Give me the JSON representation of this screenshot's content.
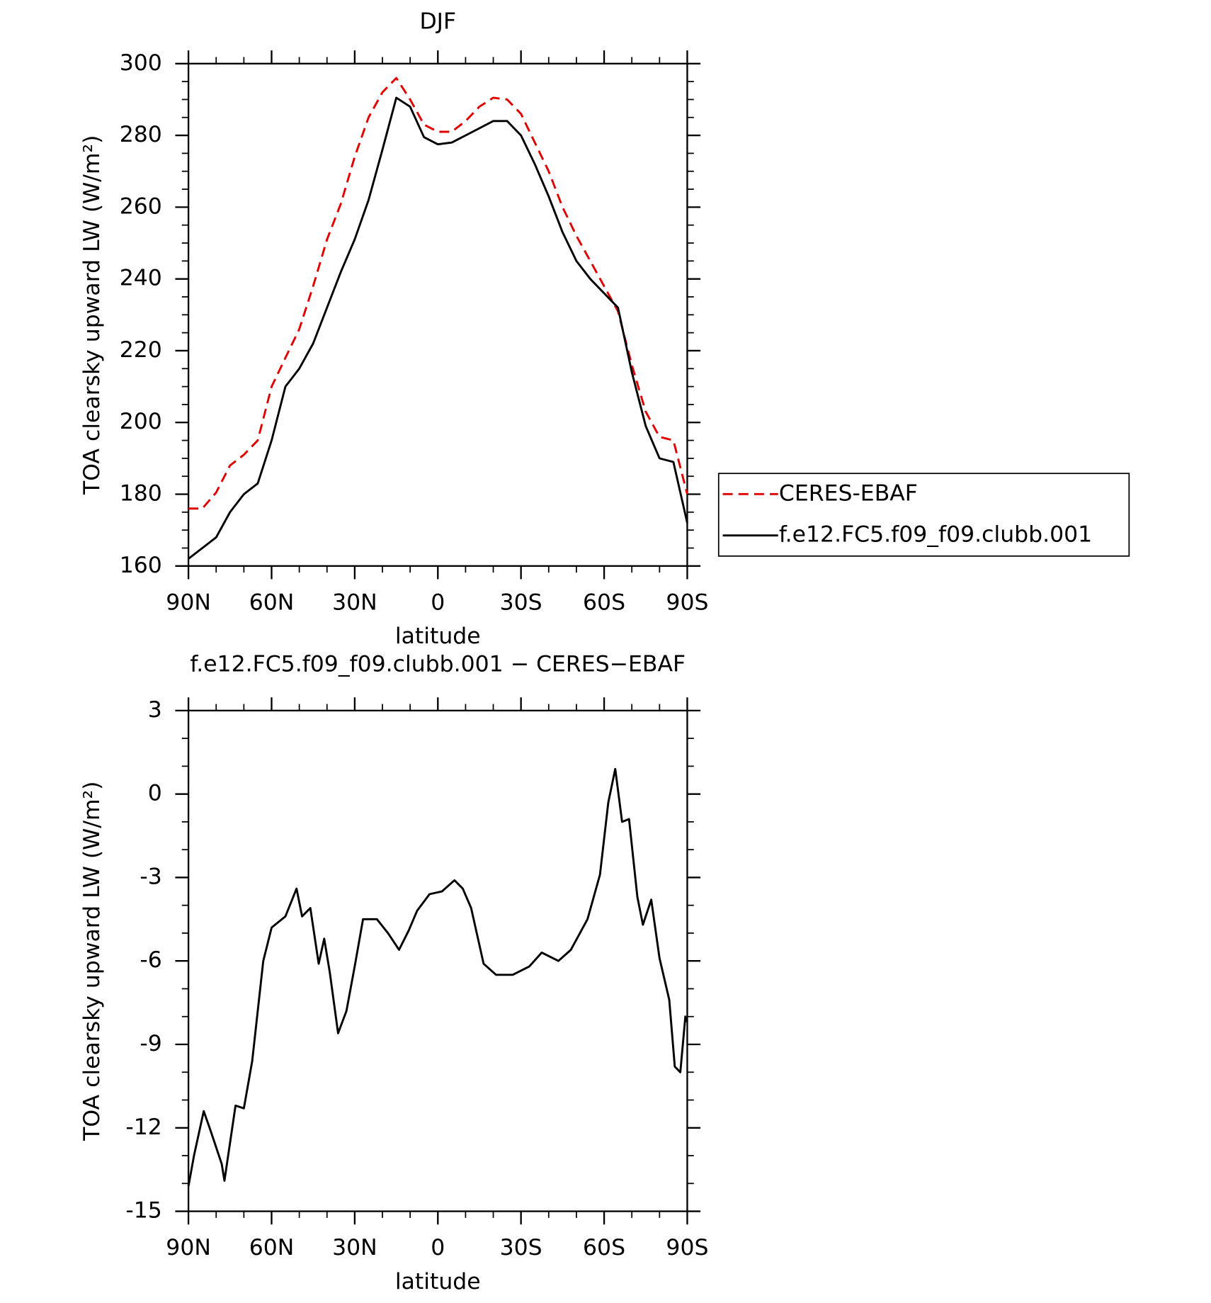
{
  "chart_data": [
    {
      "type": "line",
      "title": "DJF",
      "x_label": "latitude",
      "y_label": "TOA clearsky upward LW (W/m²)",
      "xlim": [
        90,
        -90
      ],
      "xticks": [
        {
          "value": 90,
          "label": "90N"
        },
        {
          "value": 60,
          "label": "60N"
        },
        {
          "value": 30,
          "label": "30N"
        },
        0,
        {
          "value": -30,
          "label": "30S"
        },
        {
          "value": -60,
          "label": "60S"
        },
        {
          "value": -90,
          "label": "90S"
        }
      ],
      "ylim": [
        160,
        300
      ],
      "yticks": [
        160,
        180,
        200,
        220,
        240,
        260,
        280,
        300
      ],
      "legend": "right",
      "x": [
        90,
        85,
        80,
        75,
        70,
        65,
        60,
        55,
        50,
        45,
        40,
        35,
        30,
        25,
        20,
        15,
        10,
        5,
        0,
        -5,
        -10,
        -15,
        -20,
        -25,
        -30,
        -35,
        -40,
        -45,
        -50,
        -55,
        -60,
        -65,
        -70,
        -75,
        -80,
        -85,
        -90
      ],
      "series": [
        {
          "name": "CERES-EBAF",
          "color": "#e00000",
          "dash": true,
          "values": [
            176,
            176,
            180.5,
            188,
            191,
            195,
            210,
            218,
            226,
            238,
            251,
            261,
            274,
            285,
            292,
            296,
            290,
            283,
            281,
            281,
            284,
            288,
            290.5,
            290,
            286,
            278,
            270,
            260,
            252,
            245,
            238,
            231,
            216,
            203,
            196,
            195,
            180
          ]
        },
        {
          "name": "f.e12.FC5.f09_f09.clubb.001",
          "color": "#000000",
          "dash": false,
          "values": [
            162,
            165,
            168,
            175,
            180,
            183,
            195,
            210,
            215,
            222,
            232,
            242,
            251,
            262,
            276,
            290.5,
            288,
            279.5,
            277.5,
            278,
            280,
            282,
            284,
            284,
            280,
            272,
            263,
            253,
            245,
            240,
            236,
            232,
            214,
            199,
            190,
            189,
            172
          ]
        }
      ]
    },
    {
      "type": "line",
      "title": "f.e12.FC5.f09_f09.clubb.001 − CERES−EBAF",
      "x_label": "latitude",
      "y_label": "TOA clearsky upward LW (W/m²)",
      "xlim": [
        90,
        -90
      ],
      "xticks": [
        {
          "value": 90,
          "label": "90N"
        },
        {
          "value": 60,
          "label": "60N"
        },
        {
          "value": 30,
          "label": "30N"
        },
        0,
        {
          "value": -30,
          "label": "30S"
        },
        {
          "value": -60,
          "label": "60S"
        },
        {
          "value": -90,
          "label": "90S"
        }
      ],
      "ylim": [
        -15,
        3
      ],
      "yticks": [
        -15,
        -12,
        -9,
        -6,
        -3,
        0,
        3
      ],
      "x": [
        90,
        88,
        84.5,
        82,
        78,
        77,
        73,
        70,
        67,
        63,
        60,
        55,
        51,
        49,
        46,
        43,
        41,
        39,
        36,
        33,
        30,
        27,
        22,
        18,
        14,
        10.5,
        7.5,
        3,
        -1.5,
        -6,
        -9,
        -12,
        -16.5,
        -21,
        -27,
        -33,
        -37.5,
        -43.5,
        -48,
        -54,
        -58.5,
        -61.5,
        -64,
        -66.5,
        -69,
        -72,
        -74,
        -77,
        -80,
        -83.5,
        -85.5,
        -87.5,
        -89.3,
        -90
      ],
      "series": [
        {
          "color": "#000000",
          "dash": false,
          "values": [
            -14.1,
            -13.0,
            -11.4,
            -12.1,
            -13.3,
            -13.9,
            -11.2,
            -11.3,
            -9.6,
            -6.0,
            -4.8,
            -4.4,
            -3.4,
            -4.4,
            -4.1,
            -6.1,
            -5.2,
            -6.4,
            -8.6,
            -7.8,
            -6.2,
            -4.5,
            -4.5,
            -5.0,
            -5.6,
            -4.9,
            -4.2,
            -3.6,
            -3.5,
            -3.1,
            -3.4,
            -4.1,
            -6.1,
            -6.5,
            -6.5,
            -6.2,
            -5.7,
            -6.0,
            -5.6,
            -4.5,
            -2.9,
            -0.3,
            0.9,
            -1.0,
            -0.9,
            -3.7,
            -4.7,
            -3.8,
            -5.9,
            -7.4,
            -9.8,
            -10.0,
            -8.0,
            -8.2
          ]
        }
      ]
    }
  ]
}
